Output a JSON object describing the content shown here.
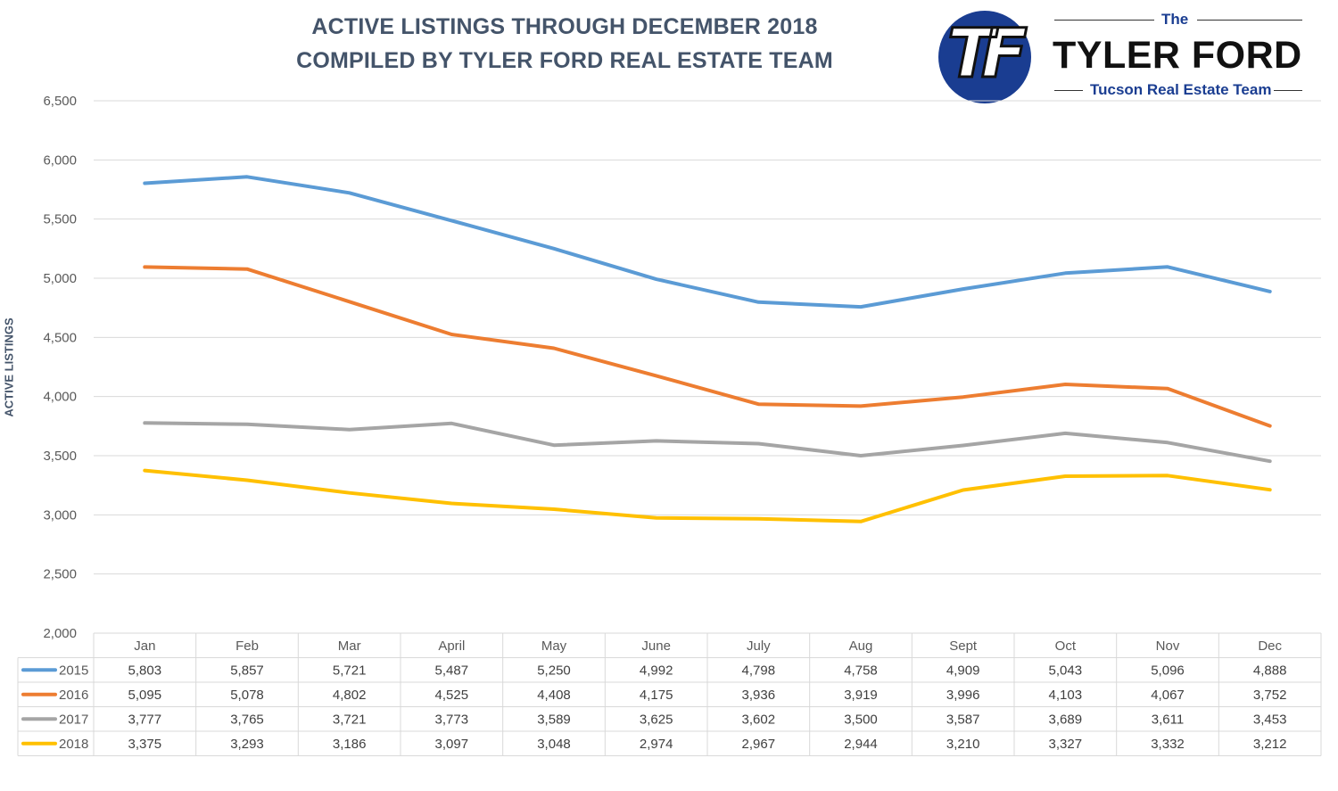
{
  "header": {
    "title_line1": "ACTIVE LISTINGS THROUGH DECEMBER 2018",
    "title_line2": "COMPILED BY TYLER FORD REAL ESTATE TEAM"
  },
  "logo": {
    "mark": "TF",
    "the": "The",
    "name": "TYLER FORD",
    "tagline": "Tucson Real Estate Team",
    "circle_color": "#1a3d91"
  },
  "chart_data": {
    "type": "line",
    "title": "ACTIVE LISTINGS THROUGH DECEMBER 2018",
    "subtitle": "COMPILED BY TYLER FORD REAL ESTATE TEAM",
    "xlabel": "",
    "ylabel": "ACTIVE LISTINGS",
    "ylim": [
      2000,
      6500
    ],
    "yticks": [
      2000,
      2500,
      3000,
      3500,
      4000,
      4500,
      5000,
      5500,
      6000,
      6500
    ],
    "ytick_labels": [
      "2,000",
      "2,500",
      "3,000",
      "3,500",
      "4,000",
      "4,500",
      "5,000",
      "5,500",
      "6,000",
      "6,500"
    ],
    "grid": true,
    "legend": "data-table",
    "categories": [
      "Jan",
      "Feb",
      "Mar",
      "April",
      "May",
      "June",
      "July",
      "Aug",
      "Sept",
      "Oct",
      "Nov",
      "Dec"
    ],
    "series": [
      {
        "name": "2015",
        "color": "#5b9bd5",
        "values": [
          5803,
          5857,
          5721,
          5487,
          5250,
          4992,
          4798,
          4758,
          4909,
          5043,
          5096,
          4888
        ],
        "labels": [
          "5,803",
          "5,857",
          "5,721",
          "5,487",
          "5,250",
          "4,992",
          "4,798",
          "4,758",
          "4,909",
          "5,043",
          "5,096",
          "4,888"
        ]
      },
      {
        "name": "2016",
        "color": "#ed7d31",
        "values": [
          5095,
          5078,
          4802,
          4525,
          4408,
          4175,
          3936,
          3919,
          3996,
          4103,
          4067,
          3752
        ],
        "labels": [
          "5,095",
          "5,078",
          "4,802",
          "4,525",
          "4,408",
          "4,175",
          "3,936",
          "3,919",
          "3,996",
          "4,103",
          "4,067",
          "3,752"
        ]
      },
      {
        "name": "2017",
        "color": "#a5a5a5",
        "values": [
          3777,
          3765,
          3721,
          3773,
          3589,
          3625,
          3602,
          3500,
          3587,
          3689,
          3611,
          3453
        ],
        "labels": [
          "3,777",
          "3,765",
          "3,721",
          "3,773",
          "3,589",
          "3,625",
          "3,602",
          "3,500",
          "3,587",
          "3,689",
          "3,611",
          "3,453"
        ]
      },
      {
        "name": "2018",
        "color": "#ffc000",
        "values": [
          3375,
          3293,
          3186,
          3097,
          3048,
          2974,
          2967,
          2944,
          3210,
          3327,
          3332,
          3212
        ],
        "labels": [
          "3,375",
          "3,293",
          "3,186",
          "3,097",
          "3,048",
          "2,974",
          "2,967",
          "2,944",
          "3,210",
          "3,327",
          "3,332",
          "3,212"
        ]
      }
    ]
  }
}
